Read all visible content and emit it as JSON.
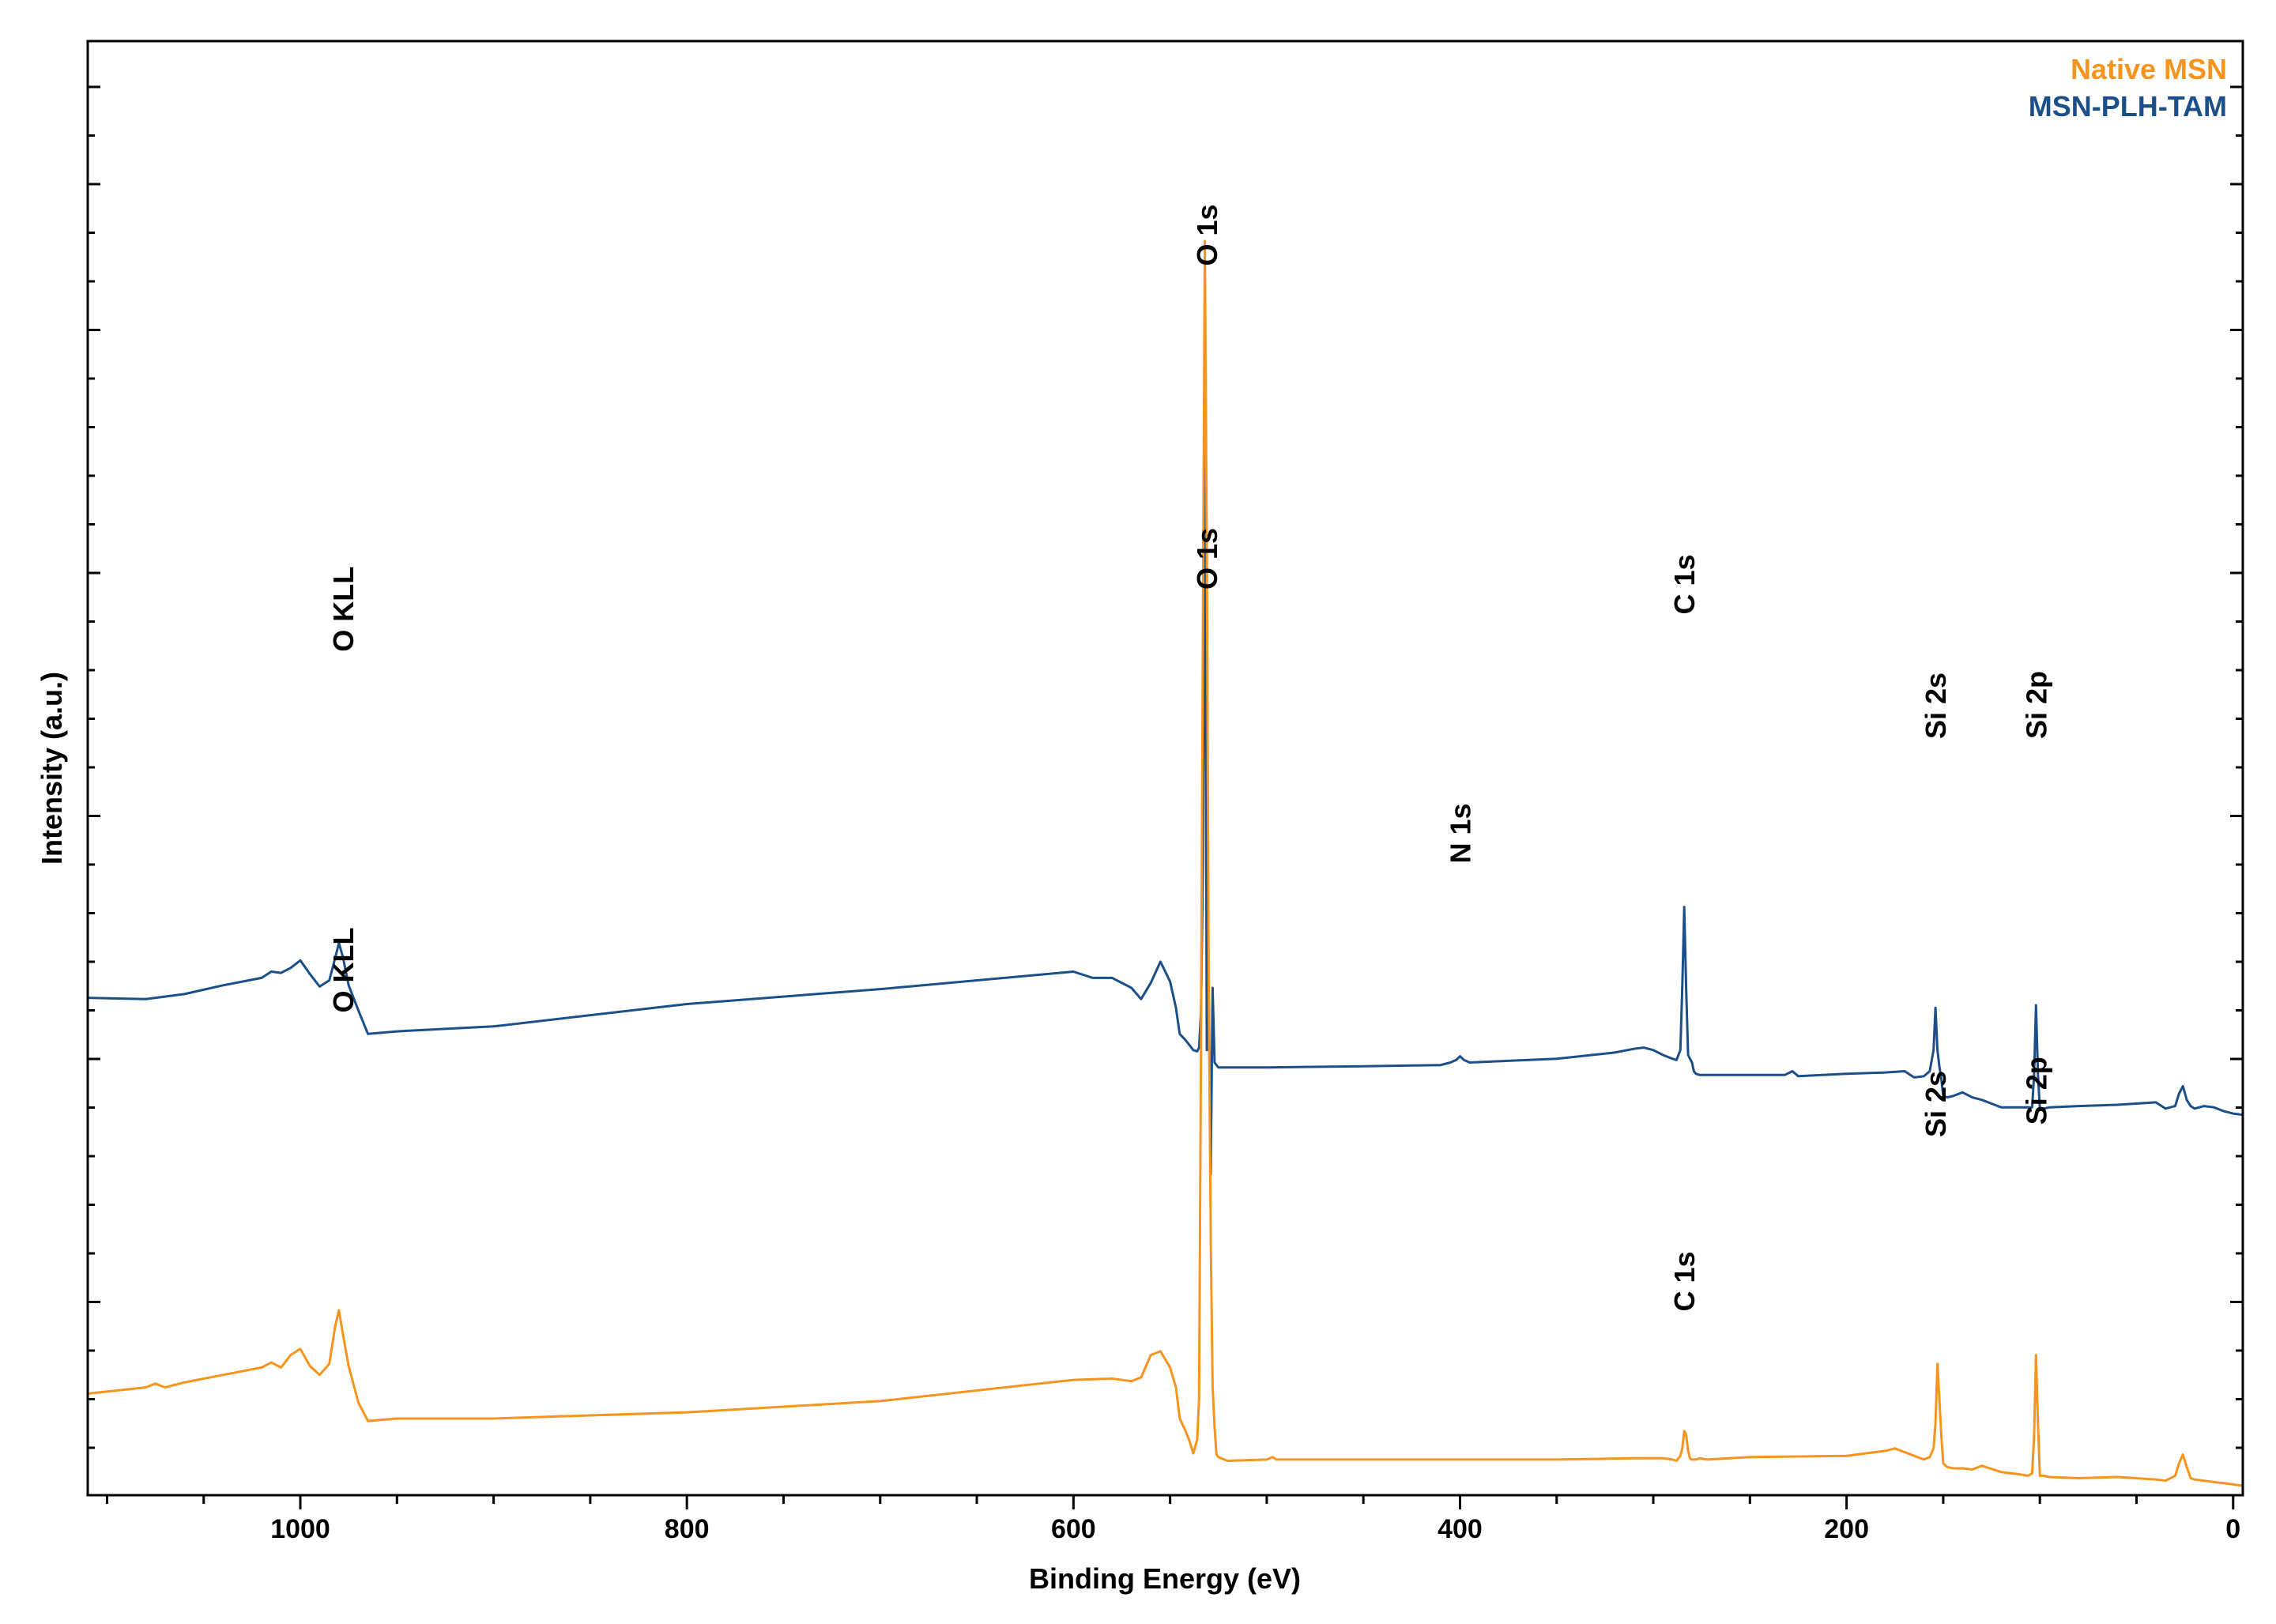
{
  "chart_data": {
    "type": "line",
    "title": "",
    "xlabel": "Binding Energy (eV)",
    "ylabel": "Intensity (a.u.)",
    "xlim": [
      1110,
      -5
    ],
    "ylim": [
      0,
      100
    ],
    "x_ticks": [
      1000,
      800,
      600,
      400,
      200,
      0
    ],
    "x_tick_labels": [
      "1000",
      "800",
      "600",
      "400",
      "200",
      "0"
    ],
    "y_tick_labels_shown": false,
    "grid": false,
    "legend_position": "top-right",
    "legend": [
      {
        "name": "Native MSN",
        "color": "#F7941D"
      },
      {
        "name": "MSN-PLH-TAM",
        "color": "#1B4F8A"
      }
    ],
    "series": [
      {
        "name": "MSN-PLH-TAM",
        "color": "#1B4F8A",
        "x": [
          1110,
          1080,
          1060,
          1040,
          1020,
          1015,
          1010,
          1005,
          1000,
          995,
          990,
          985,
          982,
          980,
          978,
          975,
          970,
          965,
          950,
          900,
          800,
          700,
          600,
          590,
          580,
          570,
          565,
          560,
          555,
          550,
          547,
          545,
          542,
          540,
          538,
          536,
          535,
          534,
          533,
          532,
          531,
          530,
          529,
          528,
          527,
          526,
          525,
          522,
          520,
          500,
          450,
          410,
          405,
          402,
          400,
          398,
          395,
          380,
          350,
          320,
          310,
          305,
          300,
          295,
          290,
          288,
          286,
          285,
          284,
          283,
          282,
          281,
          280,
          279,
          278,
          276,
          272,
          265,
          250,
          232,
          228,
          225,
          200,
          180,
          170,
          165,
          160,
          157,
          155,
          154,
          153,
          152,
          151,
          150,
          148,
          145,
          140,
          135,
          130,
          120,
          110,
          106,
          104,
          103,
          102,
          101,
          100,
          98,
          95,
          80,
          60,
          40,
          35,
          30,
          28,
          26,
          24,
          22,
          20,
          15,
          10,
          5,
          0,
          -5
        ],
        "y": [
          39.2,
          39.1,
          39.5,
          40.2,
          40.8,
          41.3,
          41.2,
          41.6,
          42.2,
          41.1,
          40.1,
          40.6,
          42.4,
          43.6,
          42.5,
          40.2,
          38.2,
          36.3,
          36.5,
          36.9,
          38.7,
          39.9,
          41.3,
          40.8,
          40.8,
          40.0,
          39.1,
          40.4,
          42.1,
          40.5,
          38.4,
          36.3,
          35.8,
          35.4,
          35.0,
          34.9,
          35.2,
          38.0,
          50.0,
          85.0,
          35.0,
          40.0,
          25.0,
          40.0,
          34.0,
          33.8,
          33.6,
          33.6,
          33.6,
          33.6,
          33.7,
          33.8,
          34.0,
          34.2,
          34.5,
          34.2,
          34.0,
          34.1,
          34.3,
          34.8,
          35.1,
          35.2,
          35.0,
          34.6,
          34.3,
          34.2,
          35.0,
          40.0,
          46.5,
          40.0,
          34.6,
          34.3,
          34.0,
          33.3,
          33.1,
          33.0,
          33.0,
          33.0,
          33.0,
          33.0,
          33.3,
          32.9,
          33.1,
          33.2,
          33.3,
          32.8,
          32.9,
          33.3,
          35.0,
          38.4,
          35.0,
          33.7,
          32.7,
          31.3,
          31.2,
          31.3,
          31.6,
          31.2,
          31.0,
          30.4,
          30.4,
          30.4,
          30.4,
          33.0,
          38.6,
          33.0,
          30.3,
          30.3,
          30.4,
          30.5,
          30.6,
          30.8,
          30.3,
          30.5,
          31.5,
          32.1,
          31.0,
          30.5,
          30.3,
          30.5,
          30.4,
          30.1,
          29.9,
          29.8
        ]
      },
      {
        "name": "Native MSN",
        "color": "#F7941D",
        "x": [
          1110,
          1080,
          1075,
          1070,
          1060,
          1040,
          1020,
          1015,
          1010,
          1005,
          1000,
          995,
          990,
          985,
          982,
          980,
          978,
          975,
          970,
          965,
          950,
          900,
          800,
          700,
          600,
          580,
          570,
          565,
          560,
          555,
          550,
          547,
          545,
          542,
          540,
          538,
          536,
          535,
          534,
          533,
          532,
          531,
          530,
          529,
          528,
          527,
          526,
          525,
          522,
          520,
          500,
          497,
          495,
          450,
          400,
          350,
          310,
          300,
          295,
          290,
          288,
          286,
          285,
          284,
          283,
          282,
          281,
          280,
          279,
          278,
          276,
          272,
          250,
          200,
          180,
          175,
          170,
          165,
          160,
          157,
          155,
          154,
          153,
          152,
          151,
          150,
          148,
          145,
          140,
          135,
          130,
          120,
          110,
          106,
          104,
          103,
          102,
          101,
          100,
          98,
          95,
          80,
          60,
          40,
          35,
          30,
          28,
          26,
          24,
          22,
          20,
          15,
          10,
          5,
          0,
          -5
        ],
        "y": [
          7.4,
          7.9,
          8.2,
          7.9,
          8.3,
          8.9,
          9.5,
          9.9,
          9.5,
          10.5,
          11.0,
          9.6,
          8.9,
          9.8,
          12.8,
          14.1,
          12.2,
          9.6,
          6.7,
          5.2,
          5.4,
          5.4,
          5.9,
          6.8,
          8.5,
          8.6,
          8.4,
          8.7,
          10.5,
          10.8,
          9.5,
          7.9,
          5.4,
          4.4,
          3.6,
          2.6,
          3.7,
          7.0,
          35.0,
          70.0,
          100.0,
          75.0,
          40.0,
          20.0,
          8.0,
          4.7,
          2.5,
          2.3,
          2.1,
          2.0,
          2.1,
          2.3,
          2.1,
          2.1,
          2.1,
          2.1,
          2.2,
          2.2,
          2.2,
          2.1,
          2.0,
          2.4,
          3.0,
          4.4,
          4.1,
          2.8,
          2.2,
          2.1,
          2.1,
          2.1,
          2.2,
          2.1,
          2.3,
          2.4,
          2.8,
          3.0,
          2.7,
          2.4,
          2.1,
          2.3,
          3.0,
          5.0,
          9.8,
          7.0,
          4.0,
          1.8,
          1.5,
          1.4,
          1.4,
          1.3,
          1.6,
          1.1,
          0.9,
          0.8,
          1.0,
          4.0,
          10.5,
          5.0,
          0.8,
          0.8,
          0.7,
          0.6,
          0.7,
          0.5,
          0.4,
          0.8,
          1.8,
          2.5,
          1.5,
          0.6,
          0.5,
          0.4,
          0.3,
          0.2,
          0.1,
          0.0
        ]
      }
    ],
    "annotations": [
      {
        "text": "O 1s",
        "x": 531,
        "y": 98,
        "series": "MSN-PLH-TAM"
      },
      {
        "text": "O KLL",
        "x": 978,
        "y": 67,
        "series": "MSN-PLH-TAM"
      },
      {
        "text": "N 1s",
        "x": 400,
        "y": 50,
        "series": "MSN-PLH-TAM"
      },
      {
        "text": "C 1s",
        "x": 284,
        "y": 70,
        "series": "MSN-PLH-TAM"
      },
      {
        "text": "Si 2s",
        "x": 154,
        "y": 60,
        "series": "MSN-PLH-TAM"
      },
      {
        "text": "Si 2p",
        "x": 102,
        "y": 60,
        "series": "MSN-PLH-TAM"
      },
      {
        "text": "O 1s",
        "x": 531,
        "y": 72,
        "series": "Native MSN"
      },
      {
        "text": "O KLL",
        "x": 978,
        "y": 38,
        "series": "Native MSN"
      },
      {
        "text": "C 1s",
        "x": 284,
        "y": 14,
        "series": "Native MSN"
      },
      {
        "text": "Si 2s",
        "x": 154,
        "y": 28,
        "series": "Native MSN"
      },
      {
        "text": "Si 2p",
        "x": 102,
        "y": 29,
        "series": "Native MSN"
      }
    ]
  }
}
